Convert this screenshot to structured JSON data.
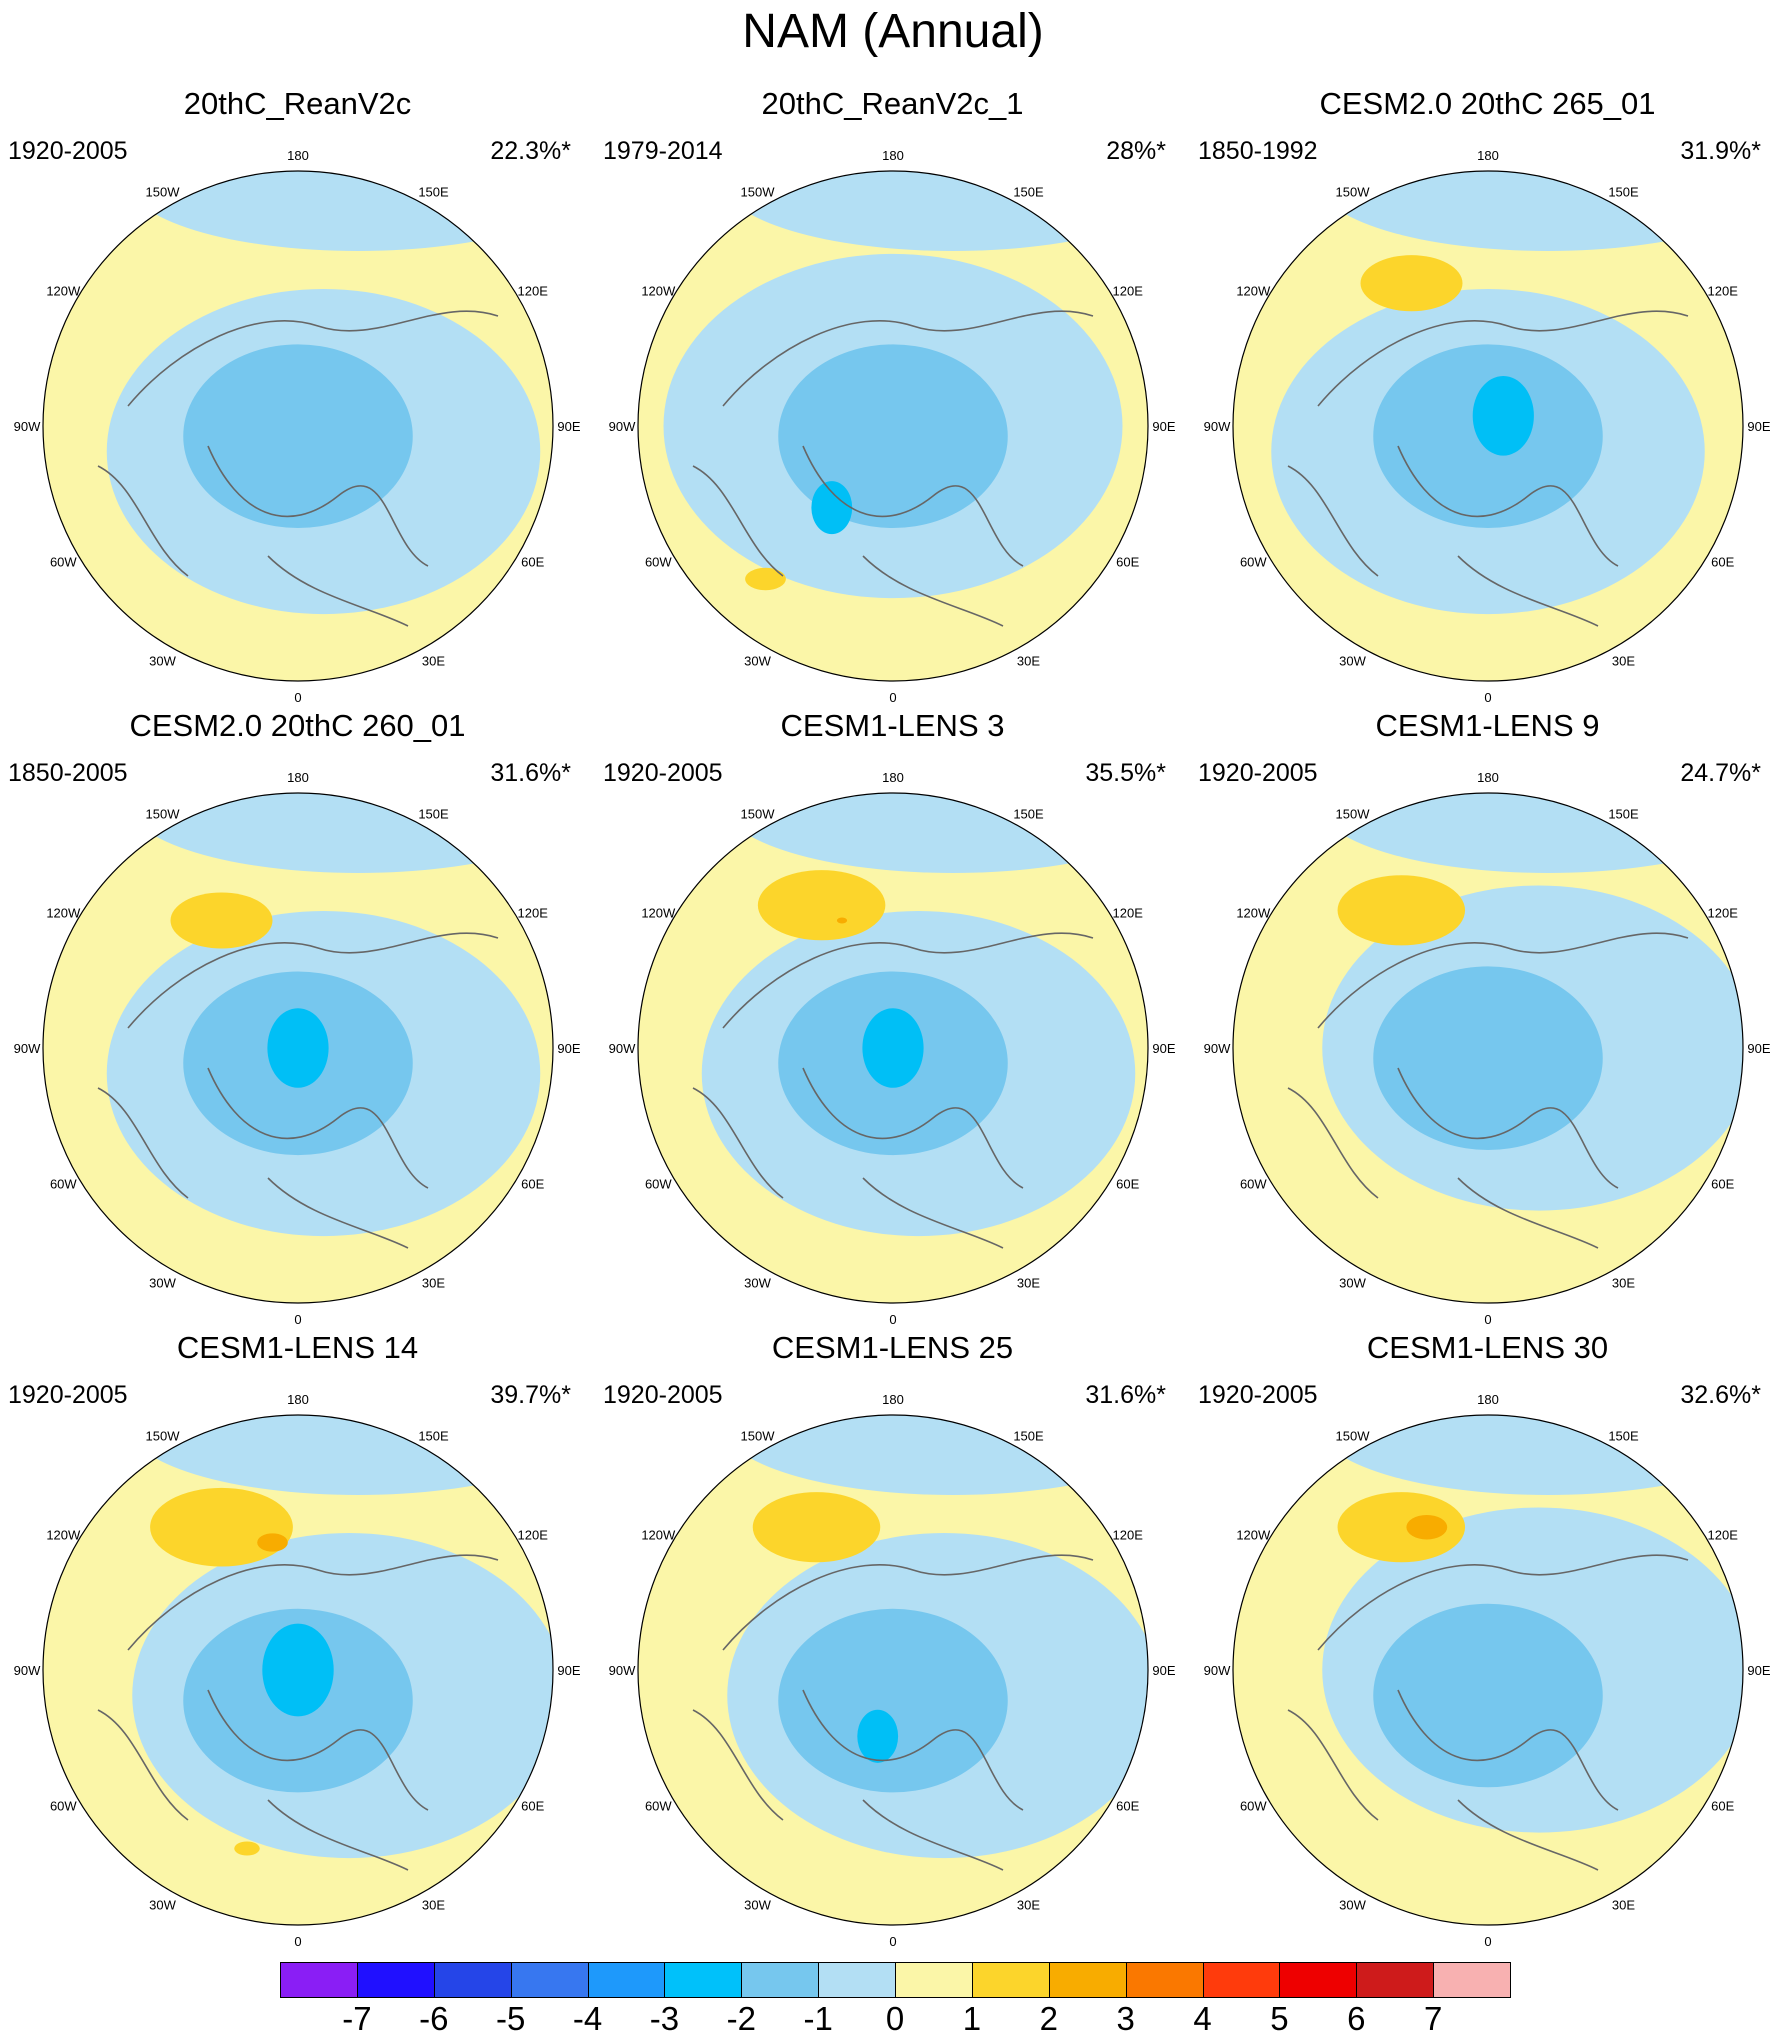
{
  "title": "NAM (Annual)",
  "longitude_labels": [
    "180",
    "150E",
    "120E",
    "90E",
    "60E",
    "30E",
    "0",
    "30W",
    "60W",
    "90W",
    "120W",
    "150W"
  ],
  "colors": {
    "ocean_land_base": "#fbf6a8",
    "neg1": "#b3dff4",
    "neg2": "#76c7ee",
    "neg3": "#00bff6",
    "pos1": "#fcd52b",
    "pos2": "#f8ac00",
    "coast": "#666666"
  },
  "panels": [
    {
      "title": "20thC_ReanV2c",
      "period": "1920-2005",
      "variance": "22.3%*",
      "pattern": {
        "neg": [
          [
            0.55,
            0.55,
            0.85
          ],
          [
            0.5,
            0.52,
            0.45
          ]
        ],
        "neg3": [],
        "pos": [],
        "pos2": []
      }
    },
    {
      "title": "20thC_ReanV2c_1",
      "period": "1979-2014",
      "variance": "28%*",
      "pattern": {
        "neg": [
          [
            0.5,
            0.5,
            0.9
          ],
          [
            0.5,
            0.52,
            0.45
          ]
        ],
        "neg3": [
          [
            0.38,
            0.66,
            0.08
          ]
        ],
        "pos": [
          [
            0.25,
            0.8,
            0.08
          ]
        ],
        "pos2": []
      }
    },
    {
      "title": "CESM2.0 20thC 265_01",
      "period": "1850-1992",
      "variance": "31.9%*",
      "pattern": {
        "neg": [
          [
            0.5,
            0.55,
            0.85
          ],
          [
            0.5,
            0.52,
            0.45
          ]
        ],
        "neg3": [
          [
            0.53,
            0.48,
            0.12
          ]
        ],
        "pos": [
          [
            0.35,
            0.22,
            0.2
          ]
        ],
        "pos2": []
      }
    },
    {
      "title": "CESM2.0 20thC 260_01",
      "period": "1850-2005",
      "variance": "31.6%*",
      "pattern": {
        "neg": [
          [
            0.55,
            0.55,
            0.85
          ],
          [
            0.5,
            0.53,
            0.45
          ]
        ],
        "neg3": [
          [
            0.5,
            0.5,
            0.12
          ]
        ],
        "pos": [
          [
            0.35,
            0.25,
            0.2
          ]
        ],
        "pos2": []
      }
    },
    {
      "title": "CESM1-LENS 3",
      "period": "1920-2005",
      "variance": "35.5%*",
      "pattern": {
        "neg": [
          [
            0.55,
            0.55,
            0.85
          ],
          [
            0.5,
            0.53,
            0.45
          ]
        ],
        "neg3": [
          [
            0.5,
            0.5,
            0.12
          ]
        ],
        "pos": [
          [
            0.36,
            0.22,
            0.25
          ]
        ],
        "pos2": [
          [
            0.4,
            0.25,
            0.02
          ]
        ]
      }
    },
    {
      "title": "CESM1-LENS 9",
      "period": "1920-2005",
      "variance": "24.7%*",
      "pattern": {
        "neg": [
          [
            0.6,
            0.5,
            0.85
          ],
          [
            0.5,
            0.52,
            0.45
          ]
        ],
        "neg3": [],
        "pos": [
          [
            0.33,
            0.23,
            0.25
          ]
        ],
        "pos2": []
      }
    },
    {
      "title": "CESM1-LENS 14",
      "period": "1920-2005",
      "variance": "39.7%*",
      "pattern": {
        "neg": [
          [
            0.6,
            0.55,
            0.85
          ],
          [
            0.5,
            0.56,
            0.45
          ]
        ],
        "neg3": [
          [
            0.5,
            0.5,
            0.14
          ]
        ],
        "pos": [
          [
            0.35,
            0.22,
            0.28
          ],
          [
            0.4,
            0.85,
            0.05
          ]
        ],
        "pos2": [
          [
            0.45,
            0.25,
            0.06
          ]
        ]
      }
    },
    {
      "title": "CESM1-LENS 25",
      "period": "1920-2005",
      "variance": "31.6%*",
      "pattern": {
        "neg": [
          [
            0.6,
            0.55,
            0.85
          ],
          [
            0.5,
            0.56,
            0.45
          ]
        ],
        "neg3": [
          [
            0.47,
            0.63,
            0.08
          ]
        ],
        "pos": [
          [
            0.35,
            0.22,
            0.25
          ]
        ],
        "pos2": []
      }
    },
    {
      "title": "CESM1-LENS 30",
      "period": "1920-2005",
      "variance": "32.6%*",
      "pattern": {
        "neg": [
          [
            0.6,
            0.5,
            0.85
          ],
          [
            0.5,
            0.55,
            0.45
          ]
        ],
        "neg3": [],
        "pos": [
          [
            0.33,
            0.22,
            0.25
          ]
        ],
        "pos2": [
          [
            0.38,
            0.22,
            0.08
          ]
        ]
      }
    }
  ],
  "colorbar": {
    "labels": [
      "-7",
      "-6",
      "-5",
      "-4",
      "-3",
      "-2",
      "-1",
      "0",
      "1",
      "2",
      "3",
      "4",
      "5",
      "6",
      "7"
    ],
    "colors": [
      "#8a1ef5",
      "#2010ff",
      "#2545e8",
      "#3777f0",
      "#1e99fb",
      "#00c1fa",
      "#76c7ee",
      "#b3dff4",
      "#fbf6a8",
      "#fcd52b",
      "#f8ac00",
      "#fa7800",
      "#ff3b0c",
      "#ee0000",
      "#ce1b1b",
      "#f8b1b1"
    ]
  }
}
